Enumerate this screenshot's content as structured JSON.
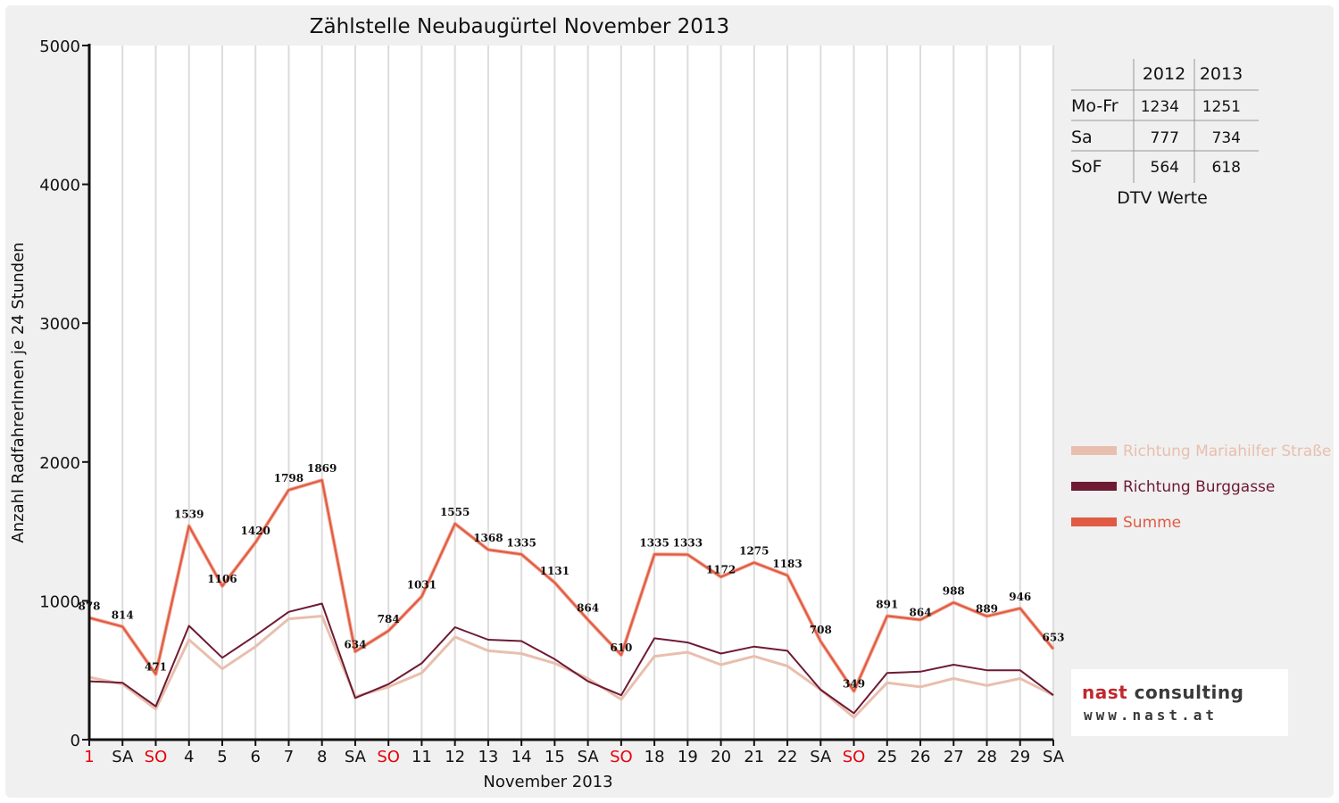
{
  "chart_data": {
    "type": "line",
    "title": "Zählstelle Neubaugürtel November 2013",
    "xlabel": "November 2013",
    "ylabel": "Anzahl RadfahrerInnen je 24 Stunden",
    "ylim": [
      0,
      5000
    ],
    "yticks": [
      "0",
      "1000",
      "2000",
      "3000",
      "4000",
      "5000"
    ],
    "grid": "vertical",
    "legend_position": "right",
    "categories": [
      "1",
      "SA",
      "SO",
      "4",
      "5",
      "6",
      "7",
      "8",
      "SA",
      "SO",
      "11",
      "12",
      "13",
      "14",
      "15",
      "SA",
      "SO",
      "18",
      "19",
      "20",
      "21",
      "22",
      "SA",
      "SO",
      "25",
      "26",
      "27",
      "28",
      "29",
      "SA"
    ],
    "category_colors": [
      "#e8000b",
      "#111111",
      "#e8000b",
      "#111111",
      "#111111",
      "#111111",
      "#111111",
      "#111111",
      "#111111",
      "#e8000b",
      "#111111",
      "#111111",
      "#111111",
      "#111111",
      "#111111",
      "#111111",
      "#e8000b",
      "#111111",
      "#111111",
      "#111111",
      "#111111",
      "#111111",
      "#111111",
      "#e8000b",
      "#111111",
      "#111111",
      "#111111",
      "#111111",
      "#111111",
      "#111111"
    ],
    "series": [
      {
        "name": "Richtung Mariahilfer Straße",
        "color": "#e8bfae",
        "values": [
          450,
          400,
          220,
          720,
          510,
          670,
          870,
          890,
          310,
          380,
          480,
          740,
          640,
          620,
          550,
          440,
          290,
          600,
          630,
          540,
          600,
          530,
          360,
          160,
          410,
          380,
          440,
          390,
          440,
          320
        ]
      },
      {
        "name": "Richtung Burggasse",
        "color": "#6e1a33",
        "values": [
          420,
          410,
          240,
          820,
          590,
          750,
          920,
          980,
          300,
          400,
          550,
          810,
          720,
          710,
          580,
          420,
          320,
          730,
          700,
          620,
          670,
          640,
          360,
          190,
          480,
          490,
          540,
          500,
          500,
          320
        ]
      },
      {
        "name": "Summe",
        "color": "#e05a44",
        "values": [
          878,
          814,
          471,
          1539,
          1106,
          1420,
          1798,
          1869,
          634,
          784,
          1031,
          1555,
          1368,
          1335,
          1131,
          864,
          610,
          1335,
          1333,
          1172,
          1275,
          1183,
          708,
          349,
          891,
          864,
          988,
          889,
          946,
          653
        ]
      }
    ],
    "data_labels": [
      "878",
      "814",
      "471",
      "1539",
      "1106",
      "1420",
      "1798",
      "1869",
      "634",
      "784",
      "1031",
      "1555",
      "1368",
      "1335",
      "1131",
      "864",
      "610",
      "1335",
      "1333",
      "1172",
      "1275",
      "1183",
      "708",
      "349",
      "891",
      "864",
      "988",
      "889",
      "946",
      "653"
    ]
  },
  "dtv_table": {
    "headers": [
      "2012",
      "2013"
    ],
    "rows": [
      {
        "label": "Mo-Fr",
        "values": [
          "1234",
          "1251"
        ]
      },
      {
        "label": "Sa",
        "values": [
          "777",
          "734"
        ]
      },
      {
        "label": "SoF",
        "values": [
          "564",
          "618"
        ]
      }
    ],
    "caption": "DTV Werte"
  },
  "logo": {
    "name_part1": "nast",
    "name_part2": " consulting",
    "url": "www.nast.at"
  }
}
